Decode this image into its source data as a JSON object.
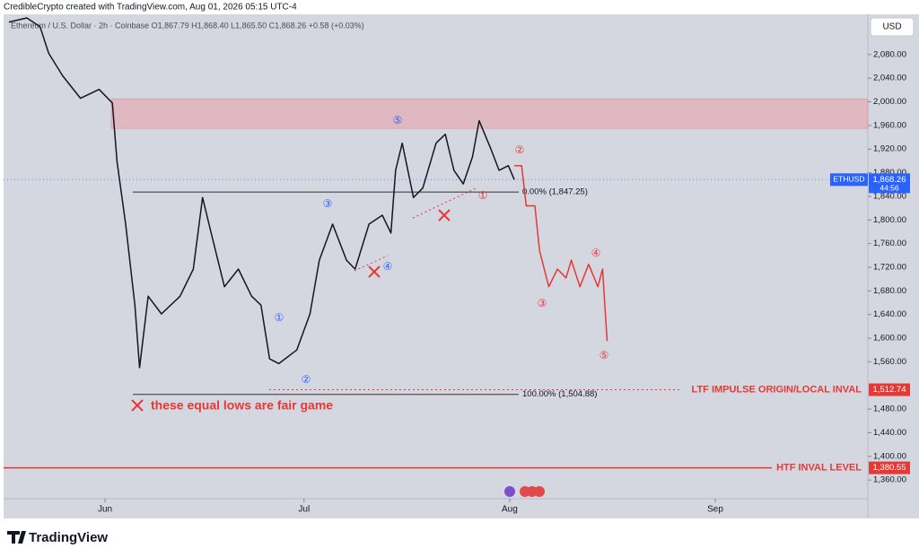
{
  "chart_data": {
    "type": "line",
    "credit": "CredibleCrypto created with TradingView.com, Aug 01, 2026 05:15 UTC-4",
    "symbol_line": "Ethereum / U.S. Dollar · 2h · Coinbase  O1,867.79  H1,868.40  L1,865.50  C1,868.26  +0.58 (+0.03%)",
    "currency": "USD",
    "brand": "TradingView",
    "xlim": [
      -15.3,
      115
    ],
    "ylim": [
      1295,
      2148
    ],
    "xticks": [
      {
        "value": 0,
        "label": "Jun"
      },
      {
        "value": 30,
        "label": "Jul"
      },
      {
        "value": 61,
        "label": "Aug"
      },
      {
        "value": 92,
        "label": "Sep"
      }
    ],
    "yticks": [
      {
        "value": 2080,
        "label": "2,080.00"
      },
      {
        "value": 2040,
        "label": "2,040.00"
      },
      {
        "value": 2000,
        "label": "2,000.00"
      },
      {
        "value": 1960,
        "label": "1,960.00"
      },
      {
        "value": 1920,
        "label": "1,920.00"
      },
      {
        "value": 1880,
        "label": "1,880.00"
      },
      {
        "value": 1840,
        "label": "1,840.00"
      },
      {
        "value": 1800,
        "label": "1,800.00"
      },
      {
        "value": 1760,
        "label": "1,760.00"
      },
      {
        "value": 1720,
        "label": "1,720.00"
      },
      {
        "value": 1680,
        "label": "1,680.00"
      },
      {
        "value": 1640,
        "label": "1,640.00"
      },
      {
        "value": 1600,
        "label": "1,600.00"
      },
      {
        "value": 1560,
        "label": "1,560.00"
      },
      {
        "value": 1480,
        "label": "1,480.00"
      },
      {
        "value": 1440,
        "label": "1,440.00"
      },
      {
        "value": 1400,
        "label": "1,400.00"
      },
      {
        "value": 1360,
        "label": "1,360.00"
      }
    ],
    "series": [
      {
        "name": "ETHUSD",
        "color": "#131722",
        "x": [
          -14.5,
          -11.8,
          -9.8,
          -8.5,
          -6.4,
          -3.7,
          -0.9,
          1.1,
          1.8,
          3.1,
          4.5,
          5.2,
          6.5,
          8.5,
          11.3,
          13.3,
          14.7,
          16.0,
          18.0,
          20.1,
          22.1,
          23.5,
          24.8,
          26.2,
          28.9,
          30.9,
          32.3,
          34.3,
          36.4,
          37.7,
          39.8,
          41.8,
          43.1,
          43.8,
          44.8,
          46.5,
          47.9,
          49.9,
          51.3,
          52.6,
          54.0,
          55.4,
          56.4,
          58.1,
          59.4,
          60.8,
          61.7
        ],
        "values": [
          2135,
          2142,
          2127,
          2082,
          2044,
          2006,
          2021,
          1998,
          1899,
          1793,
          1656,
          1550,
          1671,
          1641,
          1671,
          1717,
          1838,
          1778,
          1687,
          1717,
          1671,
          1656,
          1565,
          1557,
          1580,
          1641,
          1732,
          1793,
          1732,
          1717,
          1793,
          1808,
          1778,
          1884,
          1930,
          1838,
          1854,
          1930,
          1945,
          1884,
          1861,
          1907,
          1968,
          1922,
          1884,
          1892,
          1868.26
        ]
      },
      {
        "name": "Projection",
        "color": "#e53935",
        "x": [
          61.7,
          62.8,
          63.5,
          64.8,
          65.5,
          66.9,
          68.2,
          69.5,
          70.3,
          71.6,
          72.9,
          74.3,
          75.0,
          75.7
        ],
        "values": [
          1892,
          1892,
          1824,
          1824,
          1748,
          1687,
          1717,
          1702,
          1732,
          1687,
          1725,
          1687,
          1717,
          1595
        ]
      }
    ],
    "zone": [
      1955,
      2005
    ],
    "fib_levels": [
      {
        "value": 1847.25,
        "label": "0.00% (1,847.25)"
      },
      {
        "value": 1504.88,
        "label": "100.00% (1,504.88)"
      }
    ],
    "last_price": {
      "value": 1868.26,
      "label": "1,868.26",
      "symbol": "ETHUSD",
      "countdown": "44:56"
    },
    "levels": [
      {
        "value": 1512.74,
        "label": "1,512.74",
        "note": "LTF IMPULSE ORIGIN/LOCAL INVAL"
      },
      {
        "value": 1380.55,
        "label": "1,380.55",
        "note": "HTF INVAL LEVEL"
      }
    ],
    "annotation": "these equal lows are fair game",
    "blue_waves": [
      "⑤",
      "③",
      "①",
      "②",
      "④"
    ],
    "red_waves": [
      "①",
      "②",
      "③",
      "④",
      "⑤"
    ]
  }
}
